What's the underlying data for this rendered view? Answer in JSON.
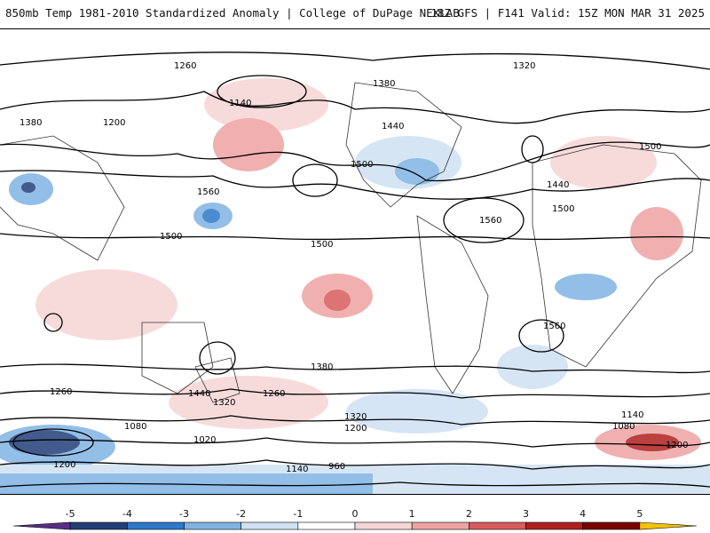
{
  "header": {
    "left_title": "850mb Temp 1981-2010 Standardized Anomaly | College of DuPage NEXLAB",
    "right_title": "18Z GFS | F141 Valid: 15Z MON MAR 31 2025"
  },
  "colorbar": {
    "ticks": [
      "-5",
      "-4",
      "-3",
      "-2",
      "-1",
      "0",
      "1",
      "2",
      "3",
      "4",
      "5"
    ],
    "colors": [
      "#5a2c86",
      "#233f78",
      "#2c79c9",
      "#7fb3e3",
      "#cfe1f3",
      "#ffffff",
      "#f6d5d5",
      "#eea3a3",
      "#d95b5b",
      "#b01f1f",
      "#7a0000",
      "#f2c200"
    ]
  },
  "contours": {
    "labels": [
      "1260",
      "1320",
      "1380",
      "1440",
      "1500",
      "1560",
      "1200",
      "1140",
      "1080",
      "1020",
      "960"
    ]
  },
  "map": {
    "field": "850mb temperature standardized anomaly",
    "overlay": "geopotential height contours"
  }
}
